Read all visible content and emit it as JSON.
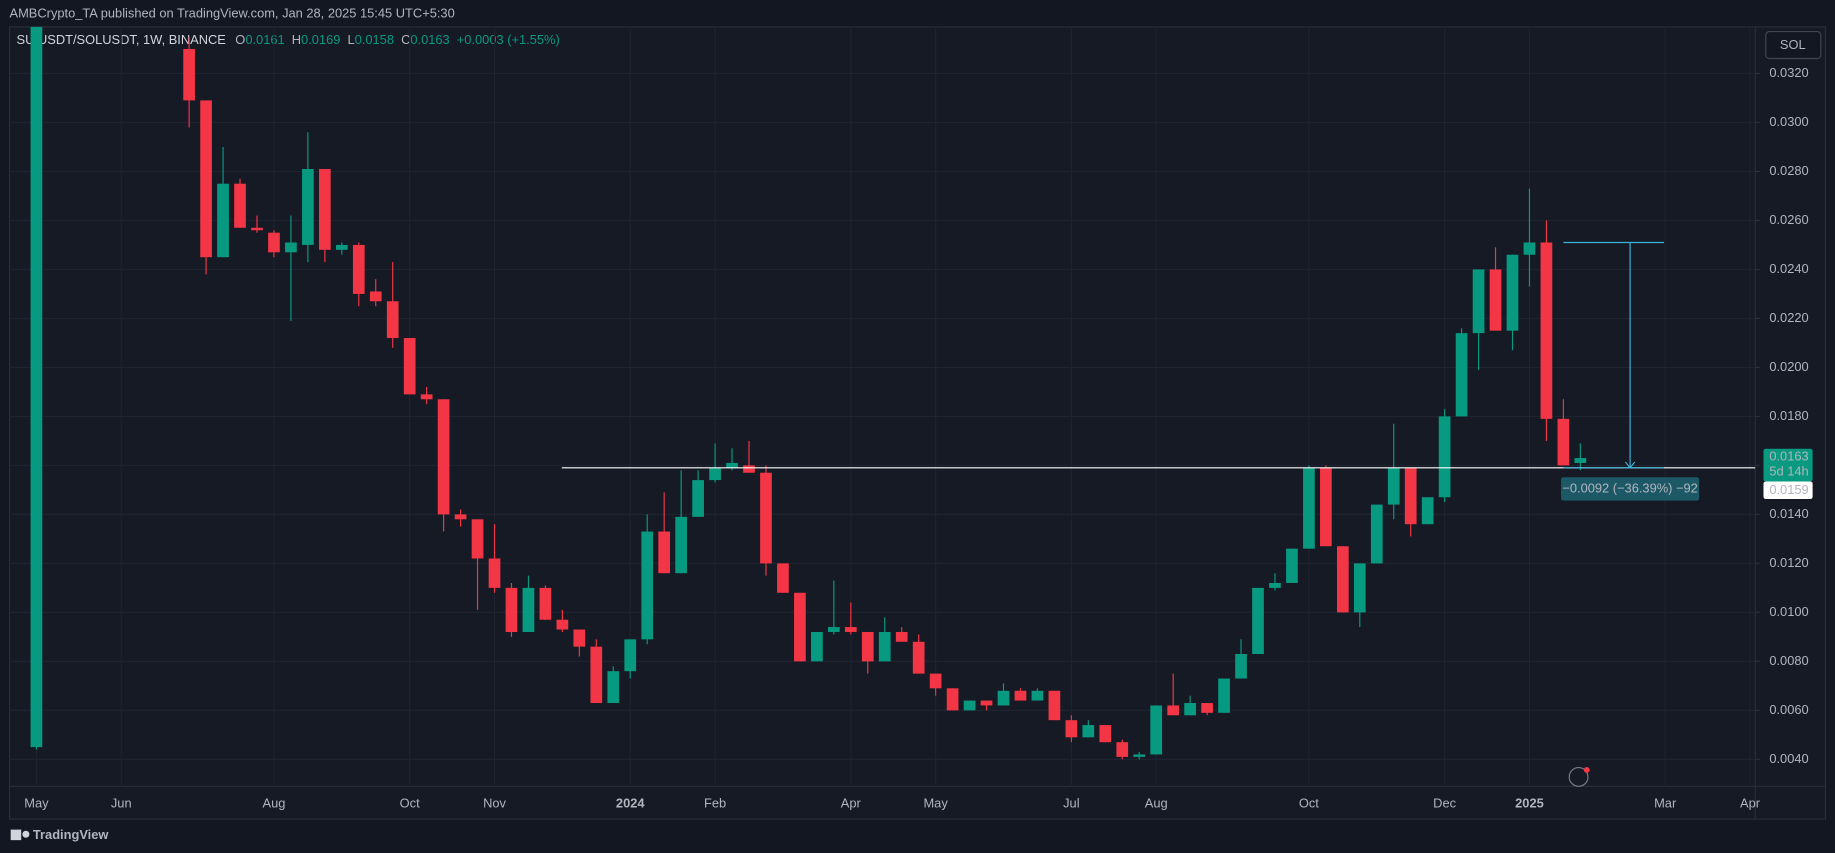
{
  "header": {
    "publisher": "AMBCrypto_TA published on TradingView.com, Jan 28, 2025 15:45 UTC+5:30"
  },
  "footer": {
    "brand": "TradingView"
  },
  "chart_data": {
    "type": "candlestick",
    "symbol": "SUIUSDT/SOLUSDT, 1W, BINANCE",
    "legend": {
      "open_label": "O",
      "open": 0.0161,
      "high_label": "H",
      "high": 0.0169,
      "low_label": "L",
      "low": 0.0158,
      "close_label": "C",
      "close": 0.0163,
      "change": "+0.0003 (+1.55%)"
    },
    "currency_button": "SOL",
    "categories": [
      "May",
      null,
      null,
      null,
      null,
      "Jun",
      null,
      null,
      null,
      null,
      null,
      null,
      null,
      null,
      "Aug",
      null,
      null,
      null,
      null,
      null,
      null,
      null,
      "Oct",
      null,
      null,
      null,
      null,
      "Nov",
      null,
      null,
      null,
      null,
      null,
      null,
      null,
      "2024",
      null,
      null,
      null,
      null,
      "Feb",
      null,
      null,
      null,
      null,
      null,
      null,
      null,
      "Apr",
      null,
      null,
      null,
      null,
      "May",
      null,
      null,
      null,
      null,
      null,
      null,
      null,
      "Jul",
      null,
      null,
      null,
      null,
      "Aug",
      null,
      null,
      null,
      null,
      null,
      null,
      null,
      null,
      "Oct",
      null,
      null,
      null,
      null,
      null,
      null,
      null,
      "Dec",
      null,
      null,
      null,
      null,
      "2025",
      null,
      null,
      null,
      null,
      null,
      null,
      null,
      "Mar",
      null,
      null,
      null,
      null,
      "Apr"
    ],
    "open": [
      0.0045,
      null,
      null,
      null,
      null,
      null,
      null,
      null,
      null,
      0.033,
      0.0309,
      0.0245,
      0.0275,
      0.0257,
      0.0255,
      0.0247,
      0.025,
      0.0281,
      0.0248,
      0.025,
      0.0231,
      0.0227,
      0.0212,
      0.0189,
      0.0187,
      0.014,
      0.0138,
      0.0122,
      0.011,
      0.0092,
      0.011,
      0.0097,
      0.0093,
      0.0086,
      0.0063,
      0.0076,
      0.0089,
      0.0133,
      0.0116,
      0.0139,
      0.0154,
      0.0159,
      0.016,
      0.0157,
      0.012,
      0.0108,
      0.008,
      0.0092,
      0.0094,
      0.0092,
      0.008,
      0.0092,
      0.0088,
      0.0075,
      0.0069,
      0.006,
      0.0064,
      0.0062,
      0.0068,
      0.0064,
      0.0068,
      0.0056,
      0.0049,
      0.0054,
      0.0047,
      0.0041,
      0.0042,
      0.0062,
      0.0058,
      0.0063,
      0.0059,
      0.0073,
      0.0083,
      0.011,
      0.0112,
      0.0126,
      0.0159,
      0.0127,
      0.01,
      0.012,
      0.0144,
      0.0159,
      0.0136,
      0.0147,
      0.018,
      0.0214,
      0.024,
      0.0215,
      0.0246,
      0.0251,
      0.0179,
      0.0161,
      null,
      null,
      null,
      null,
      null,
      null,
      null,
      null,
      null,
      null
    ],
    "high": [
      0.034,
      null,
      null,
      null,
      null,
      null,
      null,
      null,
      null,
      0.0335,
      0.0309,
      0.029,
      0.0277,
      0.0262,
      0.0256,
      0.0262,
      0.0296,
      0.0281,
      0.0251,
      0.0251,
      0.0236,
      0.0243,
      0.0212,
      0.0192,
      0.0187,
      0.0142,
      0.0138,
      0.0136,
      0.0112,
      0.0115,
      0.0111,
      0.0101,
      0.0093,
      0.0089,
      0.0078,
      0.0089,
      0.014,
      0.0149,
      0.0158,
      0.0158,
      0.0169,
      0.0167,
      0.017,
      0.016,
      0.012,
      0.0108,
      0.0092,
      0.0113,
      0.0104,
      0.0092,
      0.0098,
      0.0094,
      0.0091,
      0.0075,
      0.0069,
      0.0064,
      0.0064,
      0.0071,
      0.0069,
      0.0069,
      0.0068,
      0.0058,
      0.0056,
      0.0054,
      0.0048,
      0.0043,
      0.0062,
      0.0075,
      0.0066,
      0.0063,
      0.0073,
      0.0089,
      0.011,
      0.0116,
      0.0126,
      0.016,
      0.016,
      0.0127,
      0.012,
      0.0144,
      0.0177,
      0.0159,
      0.0147,
      0.0183,
      0.0216,
      0.024,
      0.0249,
      0.0246,
      0.0273,
      0.026,
      0.0187,
      0.0169,
      null,
      null,
      null,
      null,
      null,
      null,
      null,
      null,
      null,
      null
    ],
    "low": [
      0.0044,
      null,
      null,
      null,
      null,
      null,
      null,
      null,
      null,
      0.0298,
      0.0238,
      0.0245,
      0.0257,
      0.0255,
      0.0245,
      0.0219,
      0.0243,
      0.0243,
      0.0246,
      0.0225,
      0.0225,
      0.0208,
      0.0189,
      0.0185,
      0.0133,
      0.0135,
      0.0101,
      0.0108,
      0.009,
      0.0092,
      0.0097,
      0.0092,
      0.0082,
      0.0063,
      0.0063,
      0.0073,
      0.0087,
      0.0116,
      0.0116,
      0.0139,
      0.0153,
      0.0158,
      0.0157,
      0.0115,
      0.0108,
      0.008,
      0.008,
      0.0091,
      0.0091,
      0.0075,
      0.008,
      0.0088,
      0.0075,
      0.0066,
      0.006,
      0.006,
      0.006,
      0.0062,
      0.0064,
      0.0064,
      0.0056,
      0.0047,
      0.0049,
      0.0047,
      0.004,
      0.004,
      0.0042,
      0.0058,
      0.0058,
      0.0058,
      0.0059,
      0.0073,
      0.0083,
      0.0109,
      0.0112,
      0.0126,
      0.0127,
      0.01,
      0.0094,
      0.012,
      0.0138,
      0.0131,
      0.0136,
      0.0145,
      0.018,
      0.0199,
      0.0215,
      0.0207,
      0.0233,
      0.017,
      0.016,
      0.0158,
      null,
      null,
      null,
      null,
      null,
      null,
      null,
      null,
      null,
      null
    ],
    "close": [
      0.034,
      null,
      null,
      null,
      null,
      null,
      null,
      null,
      null,
      0.0309,
      0.0245,
      0.0275,
      0.0257,
      0.0256,
      0.0247,
      0.0251,
      0.0281,
      0.0248,
      0.025,
      0.023,
      0.0227,
      0.0212,
      0.0189,
      0.0187,
      0.014,
      0.0138,
      0.0122,
      0.011,
      0.0092,
      0.011,
      0.0097,
      0.0093,
      0.0086,
      0.0063,
      0.0076,
      0.0089,
      0.0133,
      0.0116,
      0.0139,
      0.0154,
      0.0159,
      0.0161,
      0.0157,
      0.012,
      0.0108,
      0.008,
      0.0092,
      0.0094,
      0.0092,
      0.008,
      0.0092,
      0.0088,
      0.0075,
      0.0069,
      0.006,
      0.0064,
      0.0062,
      0.0068,
      0.0064,
      0.0068,
      0.0056,
      0.0049,
      0.0054,
      0.0047,
      0.0041,
      0.0042,
      0.0062,
      0.0058,
      0.0063,
      0.0059,
      0.0073,
      0.0083,
      0.011,
      0.0112,
      0.0126,
      0.0159,
      0.0127,
      0.01,
      0.012,
      0.0144,
      0.0159,
      0.0136,
      0.0147,
      0.018,
      0.0214,
      0.024,
      0.0215,
      0.0246,
      0.0251,
      0.0179,
      0.016,
      0.0163,
      null,
      null,
      null,
      null,
      null,
      null,
      null,
      null,
      null,
      null
    ],
    "up_color": "#089981",
    "down_color": "#f23645",
    "ylim": [
      0.0029,
      0.0339
    ],
    "yticks": [
      {
        "value": 0.004,
        "label": "0.0040"
      },
      {
        "value": 0.006,
        "label": "0.0060"
      },
      {
        "value": 0.008,
        "label": "0.0080"
      },
      {
        "value": 0.01,
        "label": "0.0100"
      },
      {
        "value": 0.012,
        "label": "0.0120"
      },
      {
        "value": 0.014,
        "label": "0.0140"
      },
      {
        "value": 0.016,
        "label": "0.0160"
      },
      {
        "value": 0.018,
        "label": "0.0180"
      },
      {
        "value": 0.02,
        "label": "0.0200"
      },
      {
        "value": 0.022,
        "label": "0.0220"
      },
      {
        "value": 0.024,
        "label": "0.0240"
      },
      {
        "value": 0.026,
        "label": "0.0260"
      },
      {
        "value": 0.028,
        "label": "0.0280"
      },
      {
        "value": 0.03,
        "label": "0.0300"
      },
      {
        "value": 0.032,
        "label": "0.0320"
      }
    ],
    "grid": true,
    "last_price": {
      "value": 0.0163,
      "countdown": "5d 14h"
    },
    "horizontal_line": {
      "value": 0.0159,
      "color": "#ffffff"
    },
    "measure": {
      "from": 0.0251,
      "to": 0.0159,
      "label": "−0.0092 (−36.39%) −92",
      "color": "#3ab3d9"
    }
  }
}
